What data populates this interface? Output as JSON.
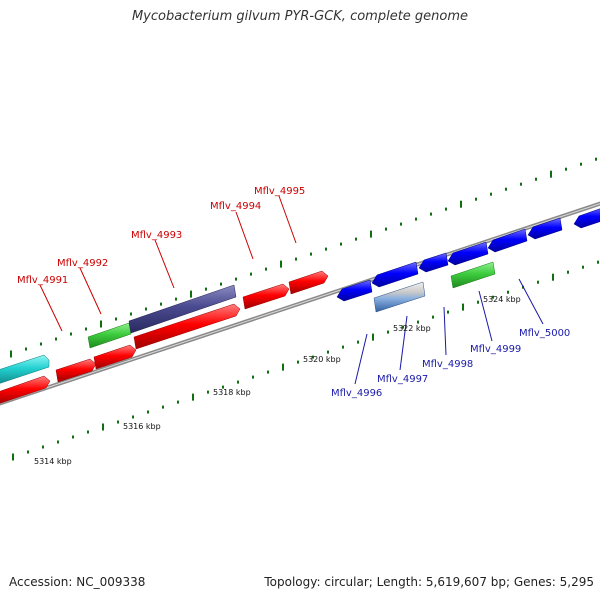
{
  "title": "Mycobacterium gilvum PYR-GCK, complete genome",
  "footer": {
    "accession": "Accession: NC_009338",
    "summary": "Topology: circular; Length: 5,619,607 bp; Genes: 5,295"
  },
  "colors": {
    "forward_gene": "#ff0000",
    "reverse_gene": "#0000ff",
    "forward_label": "#cc0000",
    "reverse_label": "#1a1aaa",
    "tick": "#107010",
    "backbone": "#8a8a8a",
    "green_feature": "#3dcc3d",
    "purple_feature": "#4a4a90",
    "cyan_feature": "#22d0d0",
    "steel_feature": "#5080c0"
  },
  "scale_ticks": [
    "5314 kbp",
    "5316 kbp",
    "5318 kbp",
    "5320 kbp",
    "5322 kbp",
    "5324 kbp"
  ],
  "gene_labels_forward": [
    "Mflv_4991",
    "Mflv_4992",
    "Mflv_4993",
    "Mflv_4994",
    "Mflv_4995"
  ],
  "gene_labels_reverse": [
    "Mflv_4996",
    "Mflv_4997",
    "Mflv_4998",
    "Mflv_4999",
    "Mflv_5000"
  ]
}
